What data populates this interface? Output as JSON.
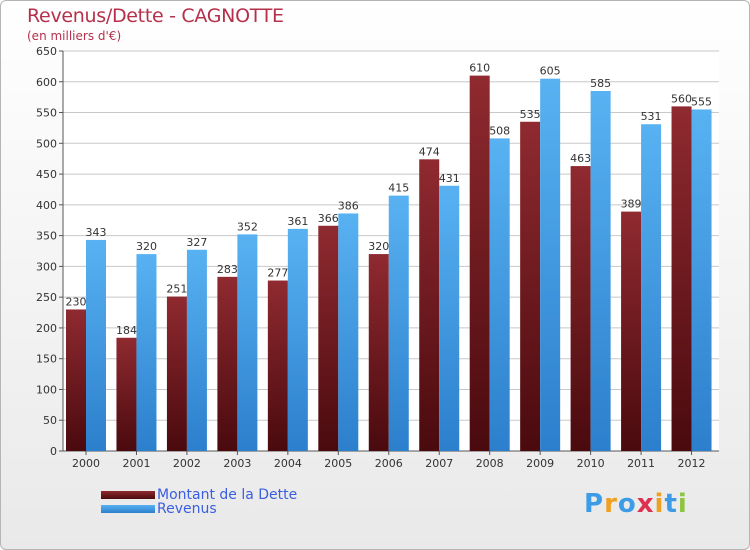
{
  "header": {
    "title": "Revenus/Dette - CAGNOTTE",
    "subtitle": "(en milliers d'€)"
  },
  "legend": {
    "dette_label": "Montant de la Dette",
    "revenus_label": "Revenus"
  },
  "brand": {
    "logo_text": "Proxiti"
  },
  "colors": {
    "dette": "#7a1c22",
    "revenus": "#3e9be6",
    "title": "#b5304a",
    "legend_text": "#3a5ee0"
  },
  "chart_data": {
    "type": "bar",
    "title": "Revenus/Dette - CAGNOTTE",
    "ylabel": "(en milliers d'€)",
    "xlabel": "",
    "categories": [
      "2000",
      "2001",
      "2002",
      "2003",
      "2004",
      "2005",
      "2006",
      "2007",
      "2008",
      "2009",
      "2010",
      "2011",
      "2012"
    ],
    "series": [
      {
        "name": "Montant de la Dette",
        "values": [
          230,
          184,
          251,
          283,
          277,
          366,
          320,
          474,
          610,
          535,
          463,
          389,
          560
        ]
      },
      {
        "name": "Revenus",
        "values": [
          343,
          320,
          327,
          352,
          361,
          386,
          415,
          431,
          508,
          605,
          585,
          531,
          555
        ]
      }
    ],
    "ylim": [
      0,
      650
    ],
    "yticks": [
      0,
      50,
      100,
      150,
      200,
      250,
      300,
      350,
      400,
      450,
      500,
      550,
      600,
      650
    ],
    "grid": true,
    "legend_position": "bottom-left"
  }
}
